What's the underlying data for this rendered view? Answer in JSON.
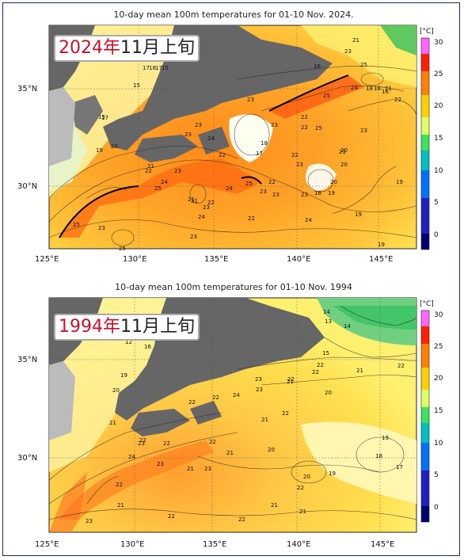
{
  "figure": {
    "panels": [
      {
        "title": "10-day mean 100m temperatures for 01-10 Nov. 2024.",
        "badge_year": "2024年",
        "badge_rest": "11月上旬",
        "contour_labels": [
          "21",
          "23",
          "17",
          "18",
          "17",
          "15",
          "16",
          "15",
          "24",
          "25",
          "22",
          "18",
          "16",
          "16",
          "21",
          "23",
          "22",
          "15",
          "25",
          "25",
          "20",
          "23",
          "17",
          "19",
          "20",
          "23",
          "24",
          "23",
          "22",
          "23",
          "18",
          "17",
          "21",
          "22",
          "23",
          "21",
          "20",
          "19",
          "24",
          "22",
          "23",
          "21",
          "25",
          "25",
          "24",
          "23",
          "22",
          "23",
          "23",
          "18",
          "19",
          "20",
          "23",
          "24",
          "22",
          "23",
          "21",
          "24",
          "22",
          "22",
          "25",
          "23",
          "25",
          "19",
          "19"
        ]
      },
      {
        "title": "10-day mean 100m temperatures for 01-10 Nov. 1994",
        "badge_year": "1994年",
        "badge_rest": "11月上旬",
        "contour_labels": [
          "14",
          "13",
          "14",
          "12",
          "16",
          "15",
          "22",
          "22",
          "22",
          "21",
          "23",
          "19",
          "20",
          "22",
          "21",
          "22",
          "22",
          "24",
          "23",
          "20",
          "22",
          "21",
          "21",
          "23",
          "24",
          "22",
          "21",
          "22",
          "21",
          "23",
          "22",
          "23",
          "20",
          "19",
          "20",
          "19",
          "18",
          "17",
          "22",
          "21",
          "21",
          "22",
          "22",
          "23",
          "22",
          "21"
        ]
      }
    ],
    "lon_ticks": [
      "125°E",
      "130°E",
      "135°E",
      "140°E",
      "145°E"
    ],
    "lat_ticks": [
      "35°N",
      "30°N"
    ],
    "colorbar": {
      "unit": "[°C]",
      "ticks": [
        "30",
        "25",
        "20",
        "15",
        "10",
        "5",
        "0"
      ],
      "colors": [
        "#ff66ff",
        "#ff0000",
        "#ff4000",
        "#ff8000",
        "#ffb000",
        "#ffe000",
        "#ffff40",
        "#d0ff60",
        "#60ff60",
        "#00e080",
        "#00c0c0",
        "#0080ff",
        "#0000ff",
        "#000080"
      ]
    }
  }
}
